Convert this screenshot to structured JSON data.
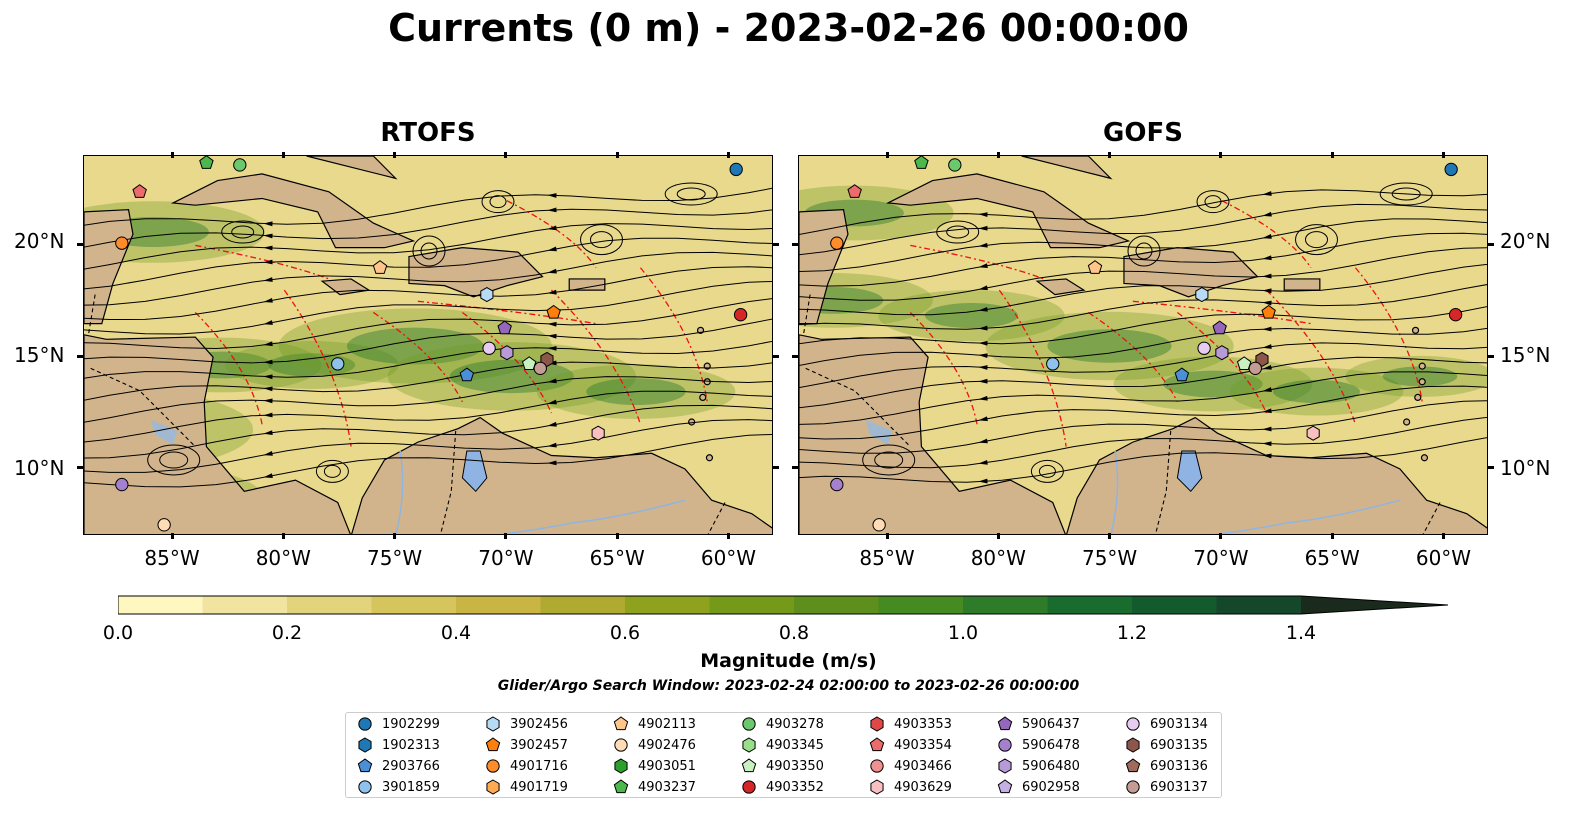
{
  "title": "Currents (0 m) - 2023-02-26 00:00:00",
  "panels": [
    {
      "title": "RTOFS"
    },
    {
      "title": "GOFS"
    }
  ],
  "axes": {
    "lon_ticks": [
      "85°W",
      "80°W",
      "75°W",
      "70°W",
      "65°W",
      "60°W"
    ],
    "lat_ticks": [
      "20°N",
      "15°N",
      "10°N"
    ]
  },
  "colorbar": {
    "label": "Magnitude (m/s)",
    "ticks": [
      "0.0",
      "0.2",
      "0.4",
      "0.6",
      "0.8",
      "1.0",
      "1.2",
      "1.4"
    ],
    "colors": [
      "#fff7c0",
      "#f0e4a0",
      "#e2d37c",
      "#d6c45c",
      "#c8b544",
      "#b0aa30",
      "#8ea21e",
      "#759918",
      "#5e8f1c",
      "#468a22",
      "#2e7c2a",
      "#1a6b2e",
      "#135a2c",
      "#15472a",
      "#173826",
      "#1a2b1e"
    ]
  },
  "search_window": "Glider/Argo Search Window: 2023-02-24 02:00:00 to 2023-02-26 00:00:00",
  "legend": [
    {
      "label": "1902299",
      "marker": "circle",
      "color": "#1f77b4"
    },
    {
      "label": "1902313",
      "marker": "hexagon",
      "color": "#1f77b4"
    },
    {
      "label": "2903766",
      "marker": "pentagon",
      "color": "#4a90d9"
    },
    {
      "label": "3901859",
      "marker": "circle",
      "color": "#8ec1ec"
    },
    {
      "label": "3902456",
      "marker": "hexagon",
      "color": "#b8dbf5"
    },
    {
      "label": "3902457",
      "marker": "pentagon",
      "color": "#ff7f0e"
    },
    {
      "label": "4901716",
      "marker": "circle",
      "color": "#ff8c2a"
    },
    {
      "label": "4901719",
      "marker": "hexagon",
      "color": "#ffaa55"
    },
    {
      "label": "4902113",
      "marker": "pentagon",
      "color": "#ffc58a"
    },
    {
      "label": "4902476",
      "marker": "circle",
      "color": "#ffdcb5"
    },
    {
      "label": "4903051",
      "marker": "hexagon",
      "color": "#2ca02c"
    },
    {
      "label": "4903237",
      "marker": "pentagon",
      "color": "#4cb84c"
    },
    {
      "label": "4903278",
      "marker": "circle",
      "color": "#6cc86c"
    },
    {
      "label": "4903345",
      "marker": "hexagon",
      "color": "#98df8a"
    },
    {
      "label": "4903350",
      "marker": "pentagon",
      "color": "#c8f0c0"
    },
    {
      "label": "4903352",
      "marker": "circle",
      "color": "#d62728"
    },
    {
      "label": "4903353",
      "marker": "hexagon",
      "color": "#e04848"
    },
    {
      "label": "4903354",
      "marker": "pentagon",
      "color": "#ec6c6c"
    },
    {
      "label": "4903466",
      "marker": "circle",
      "color": "#f09090"
    },
    {
      "label": "4903629",
      "marker": "hexagon",
      "color": "#f8c0c0"
    },
    {
      "label": "5906437",
      "marker": "pentagon",
      "color": "#9467bd"
    },
    {
      "label": "5906478",
      "marker": "circle",
      "color": "#a580cc"
    },
    {
      "label": "5906480",
      "marker": "hexagon",
      "color": "#b99ad8"
    },
    {
      "label": "6902958",
      "marker": "pentagon",
      "color": "#c5b0e4"
    },
    {
      "label": "6903134",
      "marker": "circle",
      "color": "#e5ccf0"
    },
    {
      "label": "6903135",
      "marker": "hexagon",
      "color": "#8c564b"
    },
    {
      "label": "6903136",
      "marker": "pentagon",
      "color": "#a06a5c"
    },
    {
      "label": "6903137",
      "marker": "circle",
      "color": "#c49c94"
    }
  ],
  "floats": [
    {
      "id": "1902299",
      "lon": -59.7,
      "lat": 23.4
    },
    {
      "id": "4903278",
      "lon": -82.0,
      "lat": 23.6
    },
    {
      "id": "4903237",
      "lon": -83.5,
      "lat": 23.7
    },
    {
      "id": "4903354",
      "lon": -86.5,
      "lat": 22.4
    },
    {
      "id": "4901716",
      "lon": -87.3,
      "lat": 20.1
    },
    {
      "id": "4902113",
      "lon": -75.7,
      "lat": 19.0
    },
    {
      "id": "3902456",
      "lon": -70.9,
      "lat": 17.8
    },
    {
      "id": "3902457",
      "lon": -67.9,
      "lat": 17.0
    },
    {
      "id": "4903352",
      "lon": -59.5,
      "lat": 16.9
    },
    {
      "id": "5906437",
      "lon": -70.1,
      "lat": 16.3
    },
    {
      "id": "3901859",
      "lon": -77.6,
      "lat": 14.7
    },
    {
      "id": "6903134",
      "lon": -70.8,
      "lat": 15.4
    },
    {
      "id": "5906480",
      "lon": -70.0,
      "lat": 15.2
    },
    {
      "id": "4903350",
      "lon": -69.0,
      "lat": 14.7
    },
    {
      "id": "6903135",
      "lon": -68.2,
      "lat": 14.9
    },
    {
      "id": "6903137",
      "lon": -68.5,
      "lat": 14.5
    },
    {
      "id": "2903766",
      "lon": -71.8,
      "lat": 14.2
    },
    {
      "id": "4903629",
      "lon": -65.9,
      "lat": 11.6
    },
    {
      "id": "5906478",
      "lon": -87.3,
      "lat": 9.3
    },
    {
      "id": "4902476",
      "lon": -85.4,
      "lat": 7.5
    }
  ]
}
